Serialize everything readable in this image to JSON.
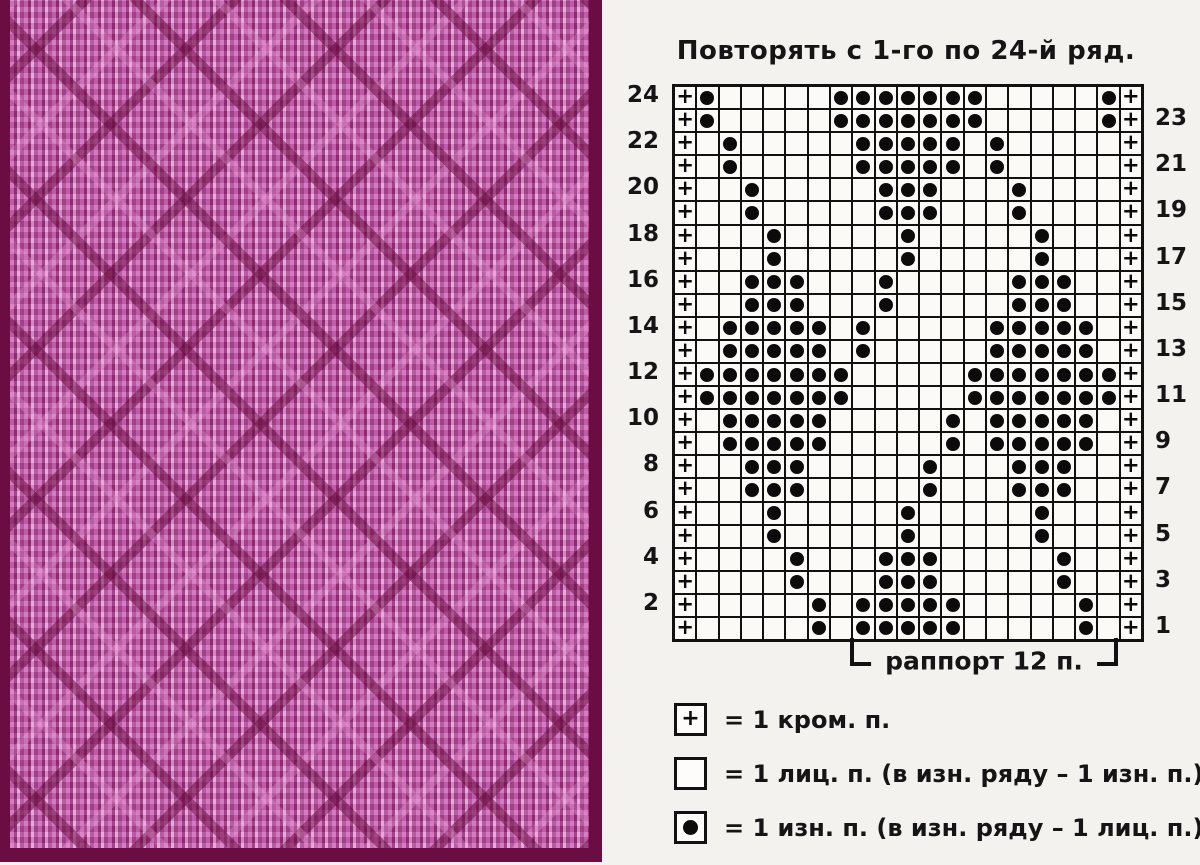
{
  "title": "Повторять с 1-го по 24-й ряд.",
  "colors": {
    "page_bg": "#f4f2ee",
    "grid_line": "#111111",
    "cell_bg": "#fbfaf7",
    "fabric_base_pink": "#bd4ea2",
    "fabric_highlight": "#e6a0d8",
    "fabric_shadow": "#9c2f7e",
    "fabric_border_maroon": "#6b0d42"
  },
  "photo": {
    "description": "pink knitted fabric swatch with embossed diamond lattice pattern"
  },
  "chart_data": {
    "type": "knitting-chart-grid",
    "columns": 21,
    "rows_count": 24,
    "cell_symbols": {
      "+": "edge stitch",
      ".": "knit (empty cell)",
      "O": "purl (black dot)"
    },
    "rows": [
      {
        "left_label": "24",
        "right_label": "",
        "cells": "+O.....OOOOOOO.....O+"
      },
      {
        "left_label": "",
        "right_label": "23",
        "cells": "+O.....OOOOOOO.....O+"
      },
      {
        "left_label": "22",
        "right_label": "",
        "cells": "+.O.....OOOOO.O.....+"
      },
      {
        "left_label": "",
        "right_label": "21",
        "cells": "+.O.....OOOOO.O.....+"
      },
      {
        "left_label": "20",
        "right_label": "",
        "cells": "+..O.....OOO...O....+"
      },
      {
        "left_label": "",
        "right_label": "19",
        "cells": "+..O.....OOO...O....+"
      },
      {
        "left_label": "18",
        "right_label": "",
        "cells": "+...O.....O.....O...+"
      },
      {
        "left_label": "",
        "right_label": "17",
        "cells": "+...O.....O.....O...+"
      },
      {
        "left_label": "16",
        "right_label": "",
        "cells": "+..OOO...O.....OOO..+"
      },
      {
        "left_label": "",
        "right_label": "15",
        "cells": "+..OOO...O.....OOO..+"
      },
      {
        "left_label": "14",
        "right_label": "",
        "cells": "+.OOOOO.O.....OOOOO.+"
      },
      {
        "left_label": "",
        "right_label": "13",
        "cells": "+.OOOOO.O.....OOOOO.+"
      },
      {
        "left_label": "12",
        "right_label": "",
        "cells": "+OOOOOOO.....OOOOOOO+"
      },
      {
        "left_label": "",
        "right_label": "11",
        "cells": "+OOOOOOO.....OOOOOOO+"
      },
      {
        "left_label": "10",
        "right_label": "",
        "cells": "+.OOOOO.....O.OOOOO.+"
      },
      {
        "left_label": "",
        "right_label": "9",
        "cells": "+.OOOOO.....O.OOOOO.+"
      },
      {
        "left_label": "8",
        "right_label": "",
        "cells": "+..OOO.....O...OOO..+"
      },
      {
        "left_label": "",
        "right_label": "7",
        "cells": "+..OOO.....O...OOO..+"
      },
      {
        "left_label": "6",
        "right_label": "",
        "cells": "+...O.....O.....O...+"
      },
      {
        "left_label": "",
        "right_label": "5",
        "cells": "+...O.....O.....O...+"
      },
      {
        "left_label": "4",
        "right_label": "",
        "cells": "+....O...OOO.....O..+"
      },
      {
        "left_label": "",
        "right_label": "3",
        "cells": "+....O...OOO.....O..+"
      },
      {
        "left_label": "2",
        "right_label": "",
        "cells": "+.....O.OOOOO.....O.+"
      },
      {
        "left_label": "",
        "right_label": "1",
        "cells": "+.....O.OOOOO.....O.+"
      }
    ]
  },
  "rapport": {
    "label": "раппорт 12 п.",
    "span_stitches": 12
  },
  "legend": {
    "items": [
      {
        "symbol": "plus-box",
        "text": "= 1 кром. п."
      },
      {
        "symbol": "empty-box",
        "text": "= 1 лиц. п. (в изн. ряду – 1 изн. п.)"
      },
      {
        "symbol": "dot-box",
        "text": "= 1 изн. п. (в изн. ряду – 1 лиц. п.)"
      }
    ]
  }
}
